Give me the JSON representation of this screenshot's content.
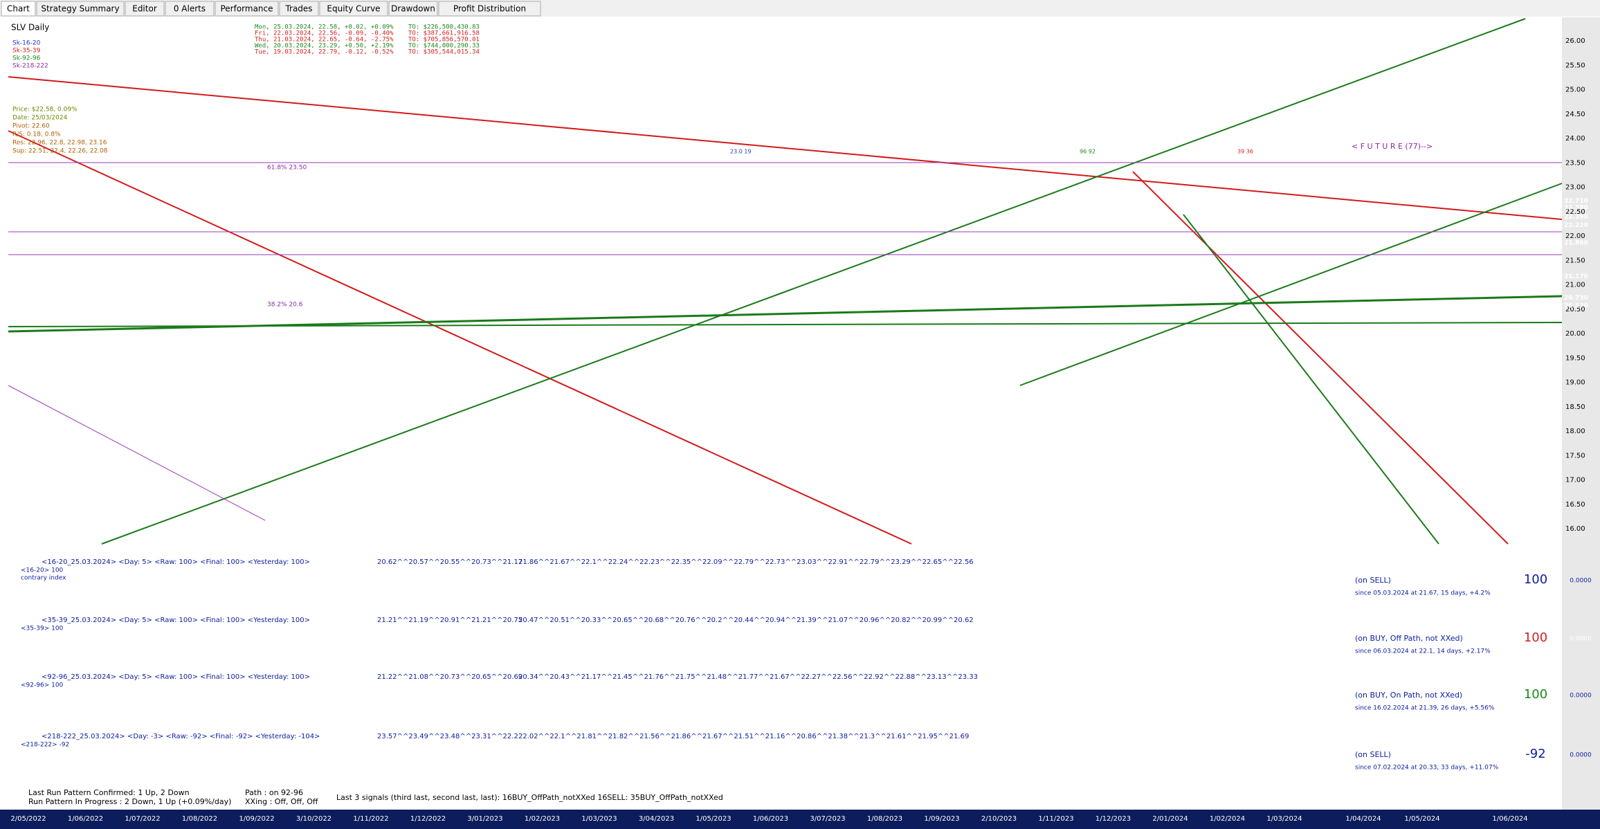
{
  "tabs": [
    "Chart",
    "Strategy Summary",
    "Editor",
    "0 Alerts",
    "Performance",
    "Trades",
    "Equity Curve",
    "Drawdown",
    "Profit Distribution"
  ],
  "chart": {
    "symbol": "SLV Daily",
    "legend": [
      "Sk-16-20",
      "Sk-35-39",
      "Sk-92-96",
      "Sk-218-222"
    ],
    "quotes": [
      {
        "line": "Mon, 25.03.2024, 22.58, +0.02, +0.09%",
        "turnover": "TO: $226,500,430.83"
      },
      {
        "line": "Fri, 22.03.2024, 22.56, -0.09, -0.40%",
        "turnover": "TO: $387,661,916.58"
      },
      {
        "line": "Thu, 21.03.2024, 22.65, -0.64, -2.75%",
        "turnover": "TO: $705,856,570.01"
      },
      {
        "line": "Wed, 20.03.2024, 23.29, +0.50, +2.19%",
        "turnover": "TO: $744,000,290.33"
      },
      {
        "line": "Tue, 19.03.2024, 22.79, -0.12, -0.52%",
        "turnover": "TO: $305,544,015.34"
      }
    ],
    "info": [
      "Price: $22.58, 0.09%",
      "Date: 25/03/2024",
      "Pivot: 22.60",
      "R/S: 0.18, 0.8%",
      "Res: 22.96, 22.8, 22.98, 23.16",
      "Sup: 22.51, 22.4, 22.26, 22.08"
    ],
    "annotations": {
      "fib_high": "61.8% 23.50",
      "fib_low": "38.2% 20.6",
      "future": "< F U T U R E (77)-->",
      "mark_a": "96  92",
      "mark_b": "39  36",
      "mark_c": "23.0 19"
    },
    "y_labels": [
      "26.00",
      "25.50",
      "25.00",
      "24.50",
      "24.00",
      "23.50",
      "23.00",
      "22.50",
      "22.00",
      "21.50",
      "21.00",
      "20.50",
      "20.00",
      "19.50",
      "19.00",
      "18.50",
      "18.00",
      "17.50",
      "17.00",
      "16.50",
      "16.00"
    ],
    "price_tags": [
      "22.716",
      "22.580",
      "22.390",
      "22.220",
      "21.860",
      "21.170",
      "20.730",
      "20.570"
    ],
    "x_labels": [
      "2/05/2022",
      "1/06/2022",
      "1/07/2022",
      "1/08/2022",
      "1/09/2022",
      "3/10/2022",
      "1/11/2022",
      "1/12/2022",
      "3/01/2023",
      "1/02/2023",
      "1/03/2023",
      "3/04/2023",
      "1/05/2023",
      "1/06/2023",
      "3/07/2023",
      "1/08/2023",
      "1/09/2023",
      "2/10/2023",
      "1/11/2023",
      "1/12/2023",
      "2/01/2024",
      "1/02/2024",
      "1/03/2024",
      "1/04/2024",
      "1/05/2024",
      "1/06/2024"
    ]
  },
  "panels": [
    {
      "header": "<16-20_25.03.2024> <Day: 5> <Raw: 100> <Final: 100> <Yesterday: 100>",
      "label": "<16-20> 100",
      "note": "contrary index",
      "seq1": "20.62^^20.57^^20.55^^20.73^^21.17",
      "seq2": "21.86^^21.67^^22.1^^22.24^^22.23^^22.35^^22.09^^22.79^^22.73^^23.03^^22.91^^22.79^^23.29^^22.65^^22.56",
      "status": "(on SELL)",
      "since": "since 05.03.2024 at 21.67, 15 days, +4.2%",
      "score": "100",
      "box": "0.0000"
    },
    {
      "header": "<35-39_25.03.2024> <Day: 5> <Raw: 100> <Final: 100> <Yesterday: 100>",
      "label": "<35-39> 100",
      "seq1": "21.21^^21.19^^20.91^^21.21^^20.75",
      "seq2": "20.47^^20.51^^20.33^^20.65^^20.68^^20.76^^20.2^^20.44^^20.94^^21.39^^21.07^^20.96^^20.82^^20.99^^20.62",
      "status": "(on BUY, Off Path, not XXed)",
      "since": "since 06.03.2024 at 22.1, 14 days, +2.17%",
      "score": "100",
      "box": "0.0000"
    },
    {
      "header": "<92-96_25.03.2024> <Day: 5> <Raw: 100> <Final: 100> <Yesterday: 100>",
      "label": "<92-96> 100",
      "seq1": "21.22^^21.08^^20.73^^20.65^^20.69",
      "seq2": "20.34^^20.43^^21.17^^21.45^^21.76^^21.75^^21.48^^21.77^^21.67^^22.27^^22.56^^22.92^^22.88^^23.13^^23.33",
      "status": "(on BUY, On Path, not XXed)",
      "since": "since 16.02.2024 at 21.39, 26 days, +5.56%",
      "score": "100",
      "box": "0.0000"
    },
    {
      "header": "<218-222_25.03.2024> <Day: -3> <Raw: -92> <Final: -92> <Yesterday: -104>",
      "label": "<218-222> -92",
      "seq1": "23.57^^23.49^^23.48^^23.31^^22.2",
      "seq2": "22.02^^22.1^^21.81^^21.82^^21.56^^21.86^^21.67^^21.51^^21.16^^20.86^^21.38^^21.3^^21.61^^21.95^^21.69",
      "status": "(on SELL)",
      "since": "since 07.02.2024 at 20.33, 33 days, +11.07%",
      "score": "-92",
      "box": "0.0000"
    }
  ],
  "footer": {
    "confirmed": "Last Run Pattern Confirmed: 1 Up, 2 Down",
    "progress": "Run Pattern In Progress   : 2 Down, 1 Up (+0.09%/day)",
    "path": "Path    : on 92-96",
    "xxing": "XXing : Off, Off, Off",
    "signals": "Last 3 signals (third last, second last, last): 16BUY_OffPath_notXXed  16SELL: 35BUY_OffPath_notXXed"
  }
}
